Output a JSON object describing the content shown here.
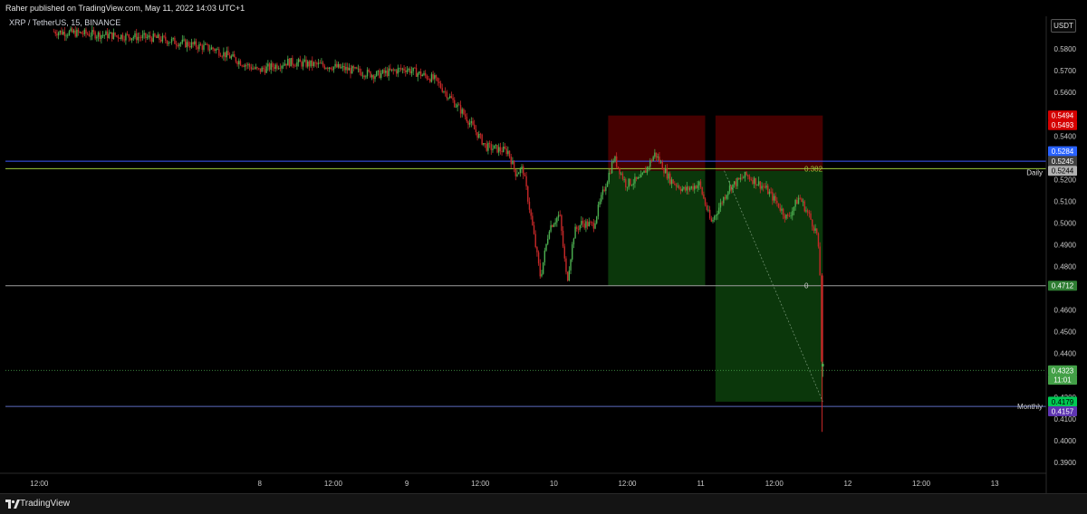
{
  "header": {
    "publisher_text": "Raher published on TradingView.com, May 11, 2022 14:03 UTC+1"
  },
  "symbol": {
    "label": "XRP / TetherUS, 15, BINANCE"
  },
  "currency_button": "USDT",
  "footer": {
    "brand": "TradingView"
  },
  "colors": {
    "up": "#4caf50",
    "down": "#c62828",
    "blue_line": "#3d5afe",
    "fib_line": "#9ccc3a",
    "zero_line": "#9e9e9e",
    "monthly_line": "#5c6bc0",
    "stop_zone": "#4a0000",
    "target_zone": "#0c3a0c"
  },
  "chart_data": {
    "type": "candlestick",
    "ylim": [
      0.385,
      0.595
    ],
    "y_ticks": [
      "0.5800",
      "0.5700",
      "0.5600",
      "0.5400",
      "0.5200",
      "0.5100",
      "0.5000",
      "0.4900",
      "0.4800",
      "0.4600",
      "0.4500",
      "0.4400",
      "0.4200",
      "0.4100",
      "0.4000",
      "0.3900"
    ],
    "x_ticks": [
      "12:00",
      "8",
      "12:00",
      "9",
      "12:00",
      "10",
      "12:00",
      "11",
      "12:00",
      "12",
      "12:00",
      "13"
    ],
    "x_tick_positions": [
      -0.5,
      1,
      1.5,
      2,
      2.5,
      3,
      3.5,
      4,
      4.5,
      5,
      5.5,
      6
    ],
    "xlim": [
      -0.73,
      6.35
    ],
    "price_path": [
      [
        -0.4,
        0.588
      ],
      [
        0.3,
        0.585
      ],
      [
        0.7,
        0.58
      ],
      [
        1.0,
        0.57
      ],
      [
        1.2,
        0.574
      ],
      [
        1.5,
        0.572
      ],
      [
        1.8,
        0.568
      ],
      [
        2.0,
        0.571
      ],
      [
        2.2,
        0.566
      ],
      [
        2.4,
        0.55
      ],
      [
        2.55,
        0.535
      ],
      [
        2.7,
        0.533
      ],
      [
        2.75,
        0.523
      ],
      [
        2.8,
        0.525
      ],
      [
        2.85,
        0.505
      ],
      [
        2.92,
        0.475
      ],
      [
        2.98,
        0.498
      ],
      [
        3.05,
        0.504
      ],
      [
        3.1,
        0.473
      ],
      [
        3.15,
        0.496
      ],
      [
        3.2,
        0.5
      ],
      [
        3.28,
        0.499
      ],
      [
        3.35,
        0.515
      ],
      [
        3.42,
        0.53
      ],
      [
        3.5,
        0.518
      ],
      [
        3.6,
        0.52
      ],
      [
        3.7,
        0.532
      ],
      [
        3.8,
        0.52
      ],
      [
        3.9,
        0.515
      ],
      [
        4.0,
        0.518
      ],
      [
        4.08,
        0.5
      ],
      [
        4.2,
        0.516
      ],
      [
        4.32,
        0.522
      ],
      [
        4.45,
        0.516
      ],
      [
        4.52,
        0.51
      ],
      [
        4.6,
        0.502
      ],
      [
        4.68,
        0.512
      ],
      [
        4.75,
        0.503
      ],
      [
        4.8,
        0.495
      ],
      [
        4.82,
        0.48
      ],
      [
        4.83,
        0.4323
      ]
    ],
    "key_points": [
      {
        "x": -0.4,
        "y": 0.588
      },
      {
        "x": 2.75,
        "y": 0.523
      },
      {
        "x": 2.92,
        "y": 0.475
      },
      {
        "x": 3.1,
        "y": 0.473
      },
      {
        "x": 3.7,
        "y": 0.532
      },
      {
        "x": 4.2,
        "y": 0.516
      },
      {
        "x": 4.83,
        "y": 0.4323
      }
    ],
    "final_low": 0.404,
    "horizontal_lines": [
      {
        "name": "blue-level",
        "y": 0.5284,
        "color": "#3d5afe",
        "label": ""
      },
      {
        "name": "fib-0382",
        "y": 0.525,
        "color": "#9ccc3a",
        "label": "0.382"
      },
      {
        "name": "fib-0",
        "y": 0.4712,
        "color": "#9e9e9e",
        "label": "0"
      },
      {
        "name": "monthly-level",
        "y": 0.4157,
        "color": "#5c6bc0",
        "label": "Monthly"
      }
    ],
    "daily_label": "Daily",
    "positions": [
      {
        "x0": 3.37,
        "x1": 4.03,
        "entry": 0.524,
        "stop": 0.5494,
        "target": 0.4712
      },
      {
        "x0": 4.1,
        "x1": 4.83,
        "entry": 0.524,
        "stop": 0.5494,
        "target": 0.4179
      }
    ],
    "price_tags": [
      {
        "value": "0.5494",
        "y": 0.5494,
        "bg": "#d50000",
        "fg": "#ffffff"
      },
      {
        "value": "0.5493",
        "y": 0.545,
        "bg": "#d50000",
        "fg": "#ffffff"
      },
      {
        "value": "0.5284",
        "y": 0.533,
        "bg": "#2962ff",
        "fg": "#ffffff"
      },
      {
        "value": "0.5245",
        "y": 0.5285,
        "bg": "#424242",
        "fg": "#ffffff"
      },
      {
        "value": "0.5244",
        "y": 0.524,
        "bg": "#b0b0b0",
        "fg": "#000000"
      },
      {
        "value": "0.4712",
        "y": 0.4712,
        "bg": "#2e7d32",
        "fg": "#ffffff"
      },
      {
        "value": "0.4323",
        "y": 0.4323,
        "bg": "#43a047",
        "fg": "#ffffff"
      },
      {
        "value": "11:01",
        "y": 0.428,
        "bg": "#43a047",
        "fg": "#ffffff"
      },
      {
        "value": "0.4179",
        "y": 0.4179,
        "bg": "#00c853",
        "fg": "#000000"
      },
      {
        "value": "0.4157",
        "y": 0.4135,
        "bg": "#5e35b1",
        "fg": "#ffffff"
      }
    ],
    "current_price": 0.4323
  }
}
